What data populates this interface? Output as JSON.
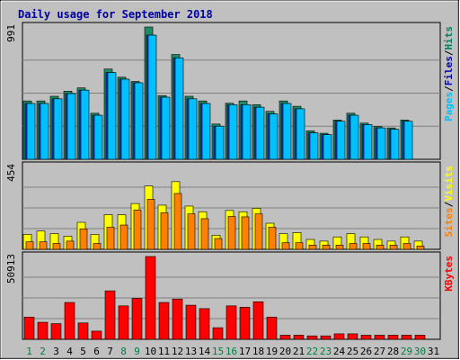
{
  "chart_data": {
    "type": "bar",
    "title": "Daily usage for September 2018",
    "categories": [
      "1",
      "2",
      "3",
      "4",
      "5",
      "6",
      "7",
      "8",
      "9",
      "10",
      "11",
      "12",
      "13",
      "14",
      "15",
      "16",
      "17",
      "18",
      "19",
      "20",
      "21",
      "22",
      "23",
      "24",
      "25",
      "26",
      "27",
      "28",
      "29",
      "30",
      "31"
    ],
    "weekend_categories": [
      "1",
      "2",
      "8",
      "9",
      "15",
      "16",
      "22",
      "23",
      "29",
      "30"
    ],
    "panels": [
      {
        "id": "top",
        "ymax_label": "991",
        "ymax": 991,
        "legend": [
          {
            "text": "Pages",
            "color": "#00c0ff"
          },
          {
            "text": "/",
            "color": "#000000"
          },
          {
            "text": "Files",
            "color": "#0000c0"
          },
          {
            "text": "/",
            "color": "#000000"
          },
          {
            "text": "Hits",
            "color": "#008060"
          }
        ],
        "series": [
          {
            "name": "Hits",
            "color": "#1f8a66",
            "values": [
              437,
              437,
              472,
              510,
              535,
              345,
              676,
              615,
              583,
              991,
              477,
              785,
              472,
              437,
              264,
              420,
              437,
              409,
              359,
              437,
              397,
              213,
              195,
              294,
              345,
              271,
              245,
              235,
              294,
              0
            ]
          },
          {
            "name": "Files",
            "color": "#1040c0",
            "values": [
              418,
              418,
              453,
              492,
              518,
              330,
              650,
              600,
              573,
              930,
              465,
              760,
              453,
              418,
              248,
              409,
              409,
              390,
              340,
              418,
              378,
              198,
              185,
              285,
              330,
              260,
              235,
              225,
              285,
              0
            ]
          },
          {
            "name": "Pages",
            "color": "#00c0ff",
            "values": [
              418,
              418,
              453,
              492,
              518,
              330,
              650,
              600,
              573,
              930,
              465,
              760,
              453,
              418,
              248,
              409,
              409,
              390,
              340,
              418,
              378,
              198,
              185,
              285,
              330,
              260,
              235,
              225,
              285,
              0
            ]
          }
        ]
      },
      {
        "id": "mid",
        "ymax_label": "454",
        "ymax": 454,
        "legend": [
          {
            "text": "Sites",
            "color": "#ff8000"
          },
          {
            "text": "/",
            "color": "#000000"
          },
          {
            "text": "Visits",
            "color": "#ffff00"
          }
        ],
        "series": [
          {
            "name": "Visits",
            "color": "#ffff00",
            "values": [
              82,
              100,
              86,
              72,
              148,
              82,
              190,
              190,
              251,
              347,
              242,
              371,
              237,
              206,
              77,
              213,
              206,
              225,
              143,
              86,
              92,
              54,
              45,
              68,
              86,
              68,
              54,
              45,
              68,
              45
            ]
          },
          {
            "name": "Sites",
            "color": "#ff8000",
            "values": [
              41,
              41,
              32,
              45,
              112,
              32,
              121,
              133,
              215,
              274,
              200,
              306,
              194,
              168,
              59,
              180,
              178,
              194,
              121,
              36,
              36,
              23,
              23,
              23,
              32,
              32,
              23,
              23,
              32,
              18
            ]
          }
        ]
      },
      {
        "id": "bot",
        "ymax_label": "50913",
        "ymax": 50913,
        "legend": [
          {
            "text": "KBytes",
            "color": "#ff0000"
          }
        ],
        "series": [
          {
            "name": "KBytes",
            "color": "#ff0000",
            "values": [
              13640,
              10480,
              9640,
              22650,
              10060,
              5030,
              29780,
              20560,
              25170,
              50913,
              22650,
              24750,
              20980,
              18870,
              7130,
              20560,
              19710,
              23070,
              13630,
              2520,
              2520,
              2100,
              2100,
              3360,
              3360,
              2520,
              2520,
              2520,
              2520,
              2520
            ]
          }
        ]
      }
    ]
  }
}
